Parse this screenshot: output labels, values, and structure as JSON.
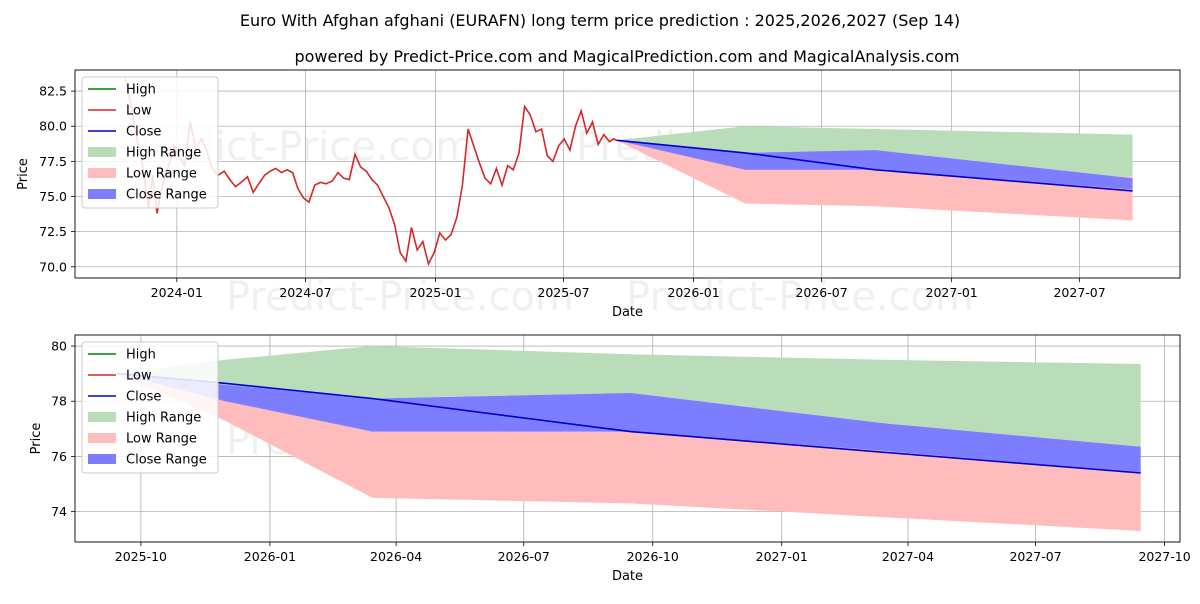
{
  "title": "Euro With Afghan afghani (EURAFN) long term price prediction : 2025,2026,2027 (Sep 14)",
  "subtitle": "powered by Predict-Price.com and MagicalPrediction.com and MagicalAnalysis.com",
  "watermark": "Predict-Price.com",
  "colors": {
    "high": "#008000",
    "low": "#d62728",
    "close": "#0000cc",
    "high_range": "#b8ddb8",
    "low_range": "#ffbcbc",
    "close_range": "#7d7dff",
    "grid": "#b0b0b0"
  },
  "legend": [
    "High",
    "Low",
    "Close",
    "High Range",
    "Low Range",
    "Close Range"
  ],
  "chart_data": [
    {
      "type": "line",
      "xlabel": "Date",
      "ylabel": "Price",
      "xlim": [
        "2023-08-10",
        "2027-11-20"
      ],
      "ylim": [
        69.2,
        84.0
      ],
      "x_ticks": [
        "2024-01",
        "2024-07",
        "2025-01",
        "2025-07",
        "2026-01",
        "2026-07",
        "2027-01",
        "2027-07"
      ],
      "x_tick_dates": [
        "2024-01-01",
        "2024-07-01",
        "2025-01-01",
        "2025-07-01",
        "2026-01-01",
        "2026-07-01",
        "2027-01-01",
        "2027-07-01"
      ],
      "y_ticks": [
        70.0,
        72.5,
        75.0,
        77.5,
        80.0,
        82.5
      ],
      "history": {
        "name": "Low",
        "dates": [
          "2023-10-20",
          "2023-10-28",
          "2023-11-05",
          "2023-11-12",
          "2023-11-18",
          "2023-11-22",
          "2023-11-28",
          "2023-12-04",
          "2023-12-10",
          "2023-12-16",
          "2023-12-22",
          "2023-12-28",
          "2024-01-05",
          "2024-01-12",
          "2024-01-20",
          "2024-01-28",
          "2024-02-05",
          "2024-02-12",
          "2024-02-20",
          "2024-02-28",
          "2024-03-08",
          "2024-03-16",
          "2024-03-24",
          "2024-04-01",
          "2024-04-10",
          "2024-04-18",
          "2024-04-26",
          "2024-05-04",
          "2024-05-12",
          "2024-05-20",
          "2024-05-28",
          "2024-06-05",
          "2024-06-13",
          "2024-06-20",
          "2024-06-28",
          "2024-07-06",
          "2024-07-14",
          "2024-07-22",
          "2024-07-30",
          "2024-08-08",
          "2024-08-16",
          "2024-08-24",
          "2024-09-01",
          "2024-09-09",
          "2024-09-17",
          "2024-09-25",
          "2024-10-03",
          "2024-10-11",
          "2024-10-19",
          "2024-10-27",
          "2024-11-04",
          "2024-11-12",
          "2024-11-20",
          "2024-11-28",
          "2024-12-06",
          "2024-12-14",
          "2024-12-22",
          "2024-12-30",
          "2025-01-07",
          "2025-01-15",
          "2025-01-23",
          "2025-01-31",
          "2025-02-08",
          "2025-02-16",
          "2025-02-24",
          "2025-03-04",
          "2025-03-12",
          "2025-03-20",
          "2025-03-28",
          "2025-04-05",
          "2025-04-13",
          "2025-04-21",
          "2025-04-29",
          "2025-05-07",
          "2025-05-15",
          "2025-05-23",
          "2025-05-31",
          "2025-06-08",
          "2025-06-16",
          "2025-06-24",
          "2025-07-02",
          "2025-07-10",
          "2025-07-18",
          "2025-07-26",
          "2025-08-03",
          "2025-08-11",
          "2025-08-19",
          "2025-08-27",
          "2025-09-04",
          "2025-09-10",
          "2025-09-14"
        ],
        "values": [
          83.4,
          81.6,
          79.2,
          77.8,
          75.6,
          74.2,
          76.5,
          73.8,
          75.4,
          76.6,
          77.4,
          78.6,
          77.8,
          77.2,
          80.3,
          78.4,
          79.1,
          78.3,
          77.0,
          76.5,
          76.8,
          76.2,
          75.7,
          76.0,
          76.4,
          75.3,
          75.9,
          76.5,
          76.8,
          77.0,
          76.7,
          76.9,
          76.7,
          75.6,
          74.9,
          74.6,
          75.8,
          76.0,
          75.9,
          76.1,
          76.7,
          76.3,
          76.2,
          78.0,
          77.1,
          76.8,
          76.2,
          75.8,
          75.0,
          74.2,
          73.0,
          71.0,
          70.4,
          72.8,
          71.2,
          71.8,
          70.2,
          71.0,
          72.4,
          71.9,
          72.3,
          73.5,
          75.8,
          79.8,
          78.6,
          77.4,
          76.3,
          75.9,
          77.0,
          75.8,
          77.2,
          76.9,
          78.1,
          81.4,
          80.8,
          79.6,
          79.8,
          77.9,
          77.5,
          78.6,
          79.1,
          78.3,
          80.0,
          81.1,
          79.5,
          80.3,
          78.7,
          79.4,
          78.9,
          79.1,
          79.0
        ]
      },
      "forecast": {
        "dates": [
          "2025-09-14",
          "2026-03-15",
          "2026-09-15",
          "2027-09-14"
        ],
        "high_range": {
          "upper": [
            79.0,
            80.0,
            79.8,
            79.4
          ],
          "lower": [
            79.0,
            77.0,
            77.0,
            76.4
          ]
        },
        "low_range": {
          "upper": [
            79.0,
            77.0,
            77.0,
            76.4
          ],
          "lower": [
            79.0,
            74.5,
            74.3,
            73.3
          ]
        },
        "close_range": {
          "upper": [
            79.0,
            78.1,
            78.3,
            76.3
          ],
          "lower": [
            79.0,
            76.9,
            76.9,
            75.5
          ]
        },
        "close": [
          79.0,
          78.1,
          76.9,
          75.4
        ]
      }
    },
    {
      "type": "line",
      "xlabel": "Date",
      "ylabel": "Price",
      "xlim": [
        "2025-08-15",
        "2027-10-12"
      ],
      "ylim": [
        72.9,
        80.4
      ],
      "x_ticks": [
        "2025-10",
        "2026-01",
        "2026-04",
        "2026-07",
        "2026-10",
        "2027-01",
        "2027-04",
        "2027-07",
        "2027-10"
      ],
      "x_tick_dates": [
        "2025-10-01",
        "2026-01-01",
        "2026-04-01",
        "2026-07-01",
        "2026-10-01",
        "2027-01-01",
        "2027-04-01",
        "2027-07-01",
        "2027-10-01"
      ],
      "y_ticks": [
        74,
        76,
        78,
        80
      ],
      "forecast": {
        "dates": [
          "2025-09-14",
          "2025-11-30",
          "2026-03-15",
          "2026-09-15",
          "2027-03-15",
          "2027-09-14"
        ],
        "high_range": {
          "upper": [
            79.0,
            79.5,
            80.0,
            79.7,
            79.5,
            79.35
          ],
          "lower": [
            79.0,
            78.6,
            78.1,
            78.3,
            77.2,
            76.35
          ]
        },
        "close_range": {
          "upper": [
            79.0,
            78.6,
            78.1,
            78.3,
            77.2,
            76.35
          ],
          "lower": [
            79.0,
            78.0,
            76.9,
            76.9,
            76.2,
            75.4
          ]
        },
        "low_range": {
          "upper": [
            79.0,
            78.0,
            76.9,
            76.9,
            76.2,
            75.4
          ],
          "lower": [
            79.0,
            77.3,
            74.5,
            74.3,
            73.8,
            73.3
          ]
        },
        "close": [
          79.0,
          78.65,
          78.1,
          76.9,
          76.15,
          75.4
        ]
      }
    }
  ]
}
